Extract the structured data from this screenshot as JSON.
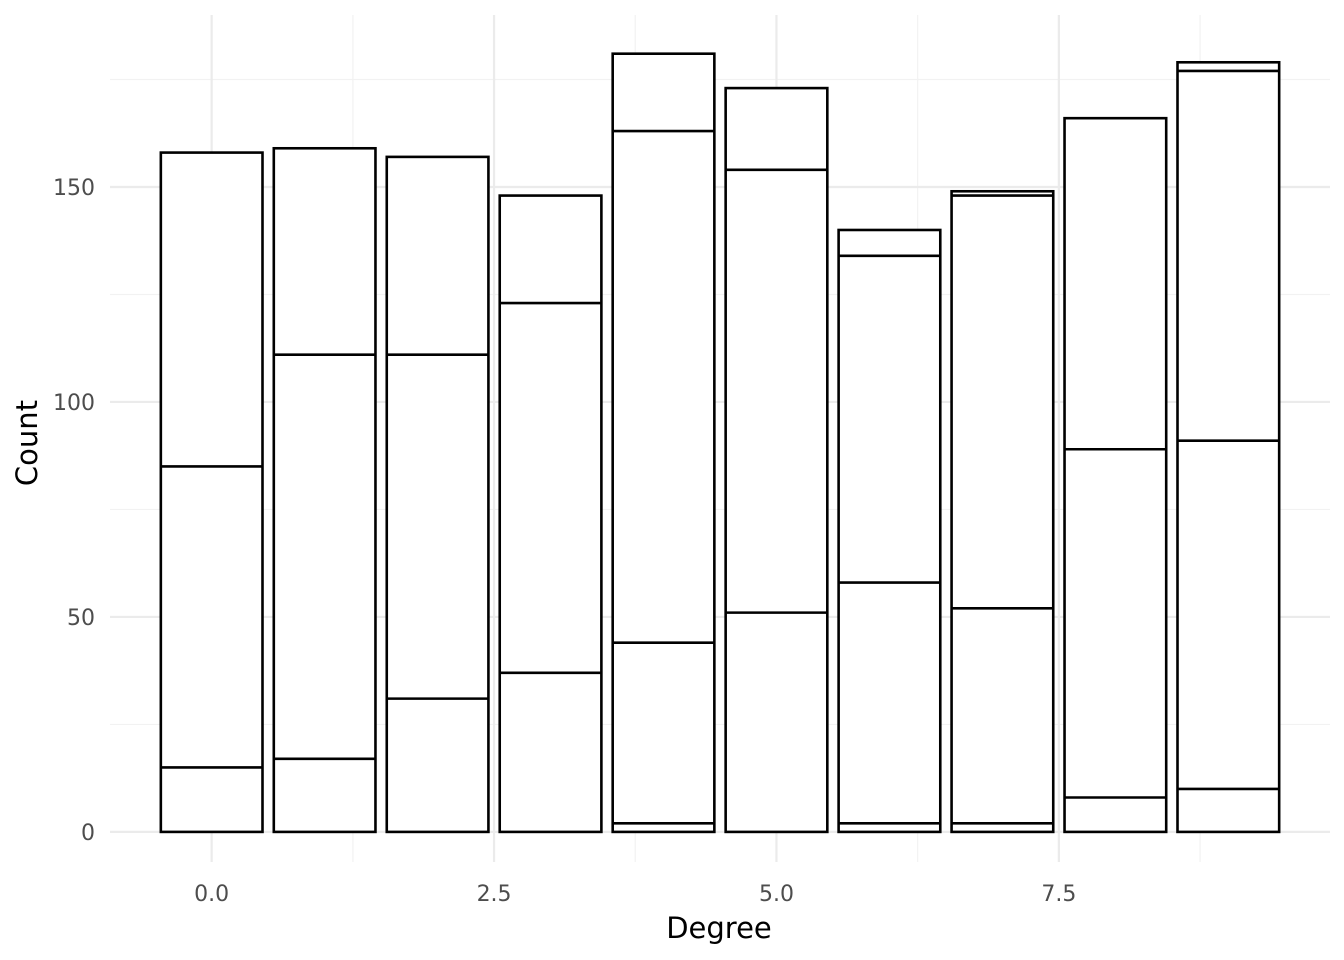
{
  "chart_data": {
    "type": "bar",
    "stacked": true,
    "title": "",
    "xlabel": "Degree",
    "ylabel": "Count",
    "x": [
      0,
      1,
      2,
      3,
      4,
      5,
      6,
      7,
      8,
      9
    ],
    "xlim": [
      -0.9,
      9.9
    ],
    "ylim": [
      -7,
      190
    ],
    "x_ticks": [
      0,
      2.5,
      5,
      7.5
    ],
    "x_tick_labels": [
      "0.0",
      "2.5",
      "5.0",
      "7.5"
    ],
    "y_ticks": [
      0,
      50,
      100,
      150
    ],
    "y_tick_labels": [
      "0",
      "50",
      "100",
      "150"
    ],
    "grid": true,
    "legend": "none",
    "bar_width": 0.9,
    "stack_boundaries": [
      [
        15,
        85,
        158
      ],
      [
        17,
        111,
        159
      ],
      [
        31,
        111,
        157
      ],
      [
        37,
        123,
        148
      ],
      [
        2,
        44,
        163,
        181
      ],
      [
        51,
        154,
        173
      ],
      [
        2,
        58,
        134,
        140
      ],
      [
        2,
        52,
        148,
        149
      ],
      [
        8,
        89,
        166
      ],
      [
        10,
        91,
        177,
        179
      ]
    ],
    "totals": [
      158,
      159,
      157,
      148,
      181,
      173,
      140,
      149,
      166,
      179
    ],
    "colors": {
      "fill": "#ffffff",
      "stroke": "#000000",
      "grid_major": "#ebebeb",
      "grid_minor": "#f2f2f2",
      "tick_text": "#4d4d4d"
    }
  }
}
